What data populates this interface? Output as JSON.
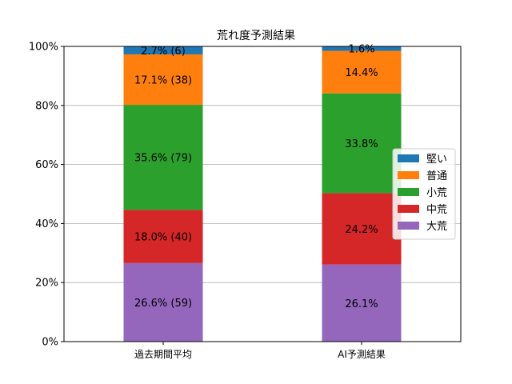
{
  "chart_data": {
    "type": "bar",
    "stacked": true,
    "title": "荒れ度予測結果",
    "xlabel": "",
    "ylabel": "",
    "ylim": [
      0,
      100
    ],
    "y_tick_labels": [
      "0%",
      "20%",
      "40%",
      "60%",
      "80%",
      "100%"
    ],
    "y_ticks": [
      0,
      20,
      40,
      60,
      80,
      100
    ],
    "grid": "horizontal",
    "legend_position": "right",
    "categories": [
      "過去期間平均",
      "AI予測結果"
    ],
    "series": [
      {
        "name": "大荒",
        "color": "#9467bd",
        "values": [
          26.6,
          26.1
        ],
        "labels": [
          "26.6% (59)",
          "26.1%"
        ]
      },
      {
        "name": "中荒",
        "color": "#d62728",
        "values": [
          18.0,
          24.2
        ],
        "labels": [
          "18.0% (40)",
          "24.2%"
        ]
      },
      {
        "name": "小荒",
        "color": "#2ca02c",
        "values": [
          35.6,
          33.8
        ],
        "labels": [
          "35.6% (79)",
          "33.8%"
        ]
      },
      {
        "name": "普通",
        "color": "#ff7f0e",
        "values": [
          17.1,
          14.4
        ],
        "labels": [
          "17.1% (38)",
          "14.4%"
        ]
      },
      {
        "name": "堅い",
        "color": "#1f77b4",
        "values": [
          2.7,
          1.6
        ],
        "labels": [
          "2.7% (6)",
          "1.6%"
        ]
      }
    ],
    "legend_order": [
      "堅い",
      "普通",
      "小荒",
      "中荒",
      "大荒"
    ]
  }
}
